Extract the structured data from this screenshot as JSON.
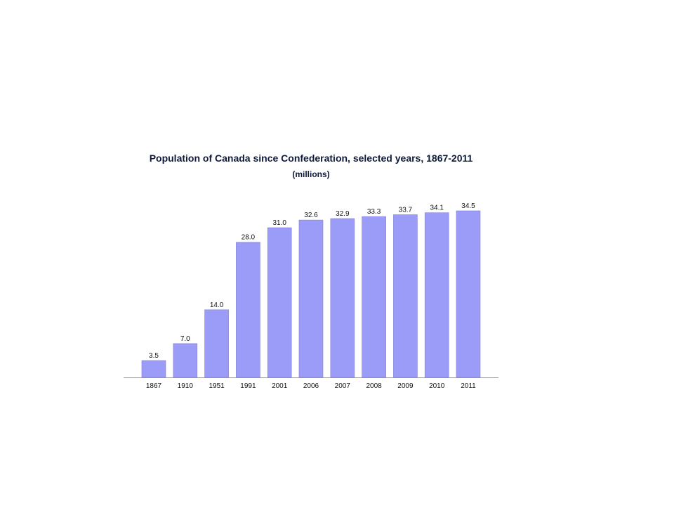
{
  "chart_data": {
    "type": "bar",
    "title": "Population of Canada since Confederation, selected years, 1867-2011",
    "subtitle": "(millions)",
    "categories": [
      "1867",
      "1910",
      "1951",
      "1991",
      "2001",
      "2006",
      "2007",
      "2008",
      "2009",
      "2010",
      "2011"
    ],
    "values": [
      3.5,
      7.0,
      14.0,
      28.0,
      31.0,
      32.6,
      32.9,
      33.3,
      33.7,
      34.1,
      34.5
    ],
    "value_labels": [
      "3.5",
      "7.0",
      "14.0",
      "28.0",
      "31.0",
      "32.6",
      "32.9",
      "33.3",
      "33.7",
      "34.1",
      "34.5"
    ],
    "ylim": [
      0,
      35
    ],
    "grid": false,
    "legend": "none",
    "bar_color": "#9b9bf8",
    "bar_edge_color": "#8080d8",
    "axis_color": "#9a9a9a"
  }
}
